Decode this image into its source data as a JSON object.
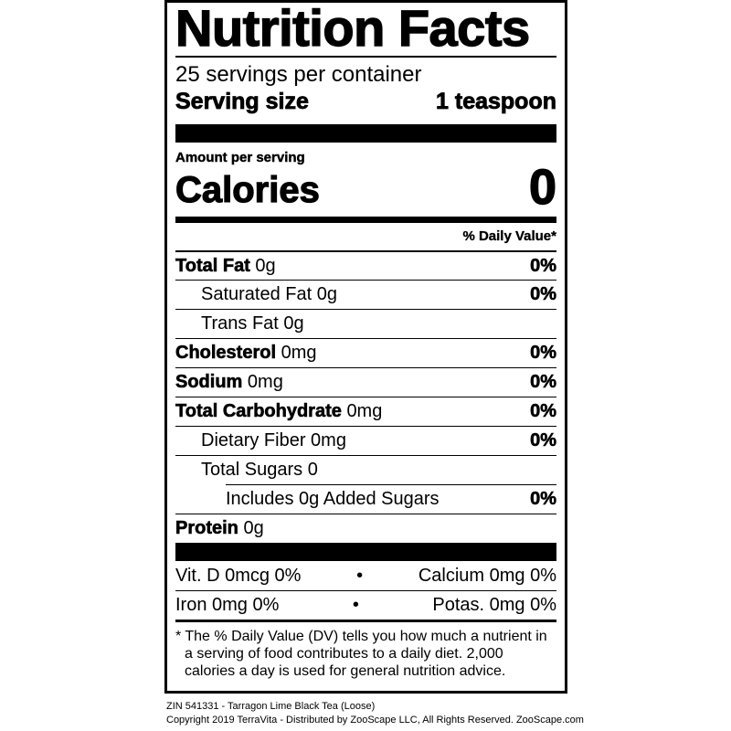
{
  "title": "Nutrition Facts",
  "servings_per_container": "25 servings per container",
  "serving_size_label": "Serving size",
  "serving_size_value": "1 teaspoon",
  "amount_per_serving": "Amount per serving",
  "calories_label": "Calories",
  "calories_value": "0",
  "daily_value_header": "% Daily Value*",
  "nutrients": [
    {
      "name": "Total Fat",
      "amount": "0g",
      "dv": "0%"
    },
    {
      "name": "Saturated Fat 0g",
      "amount": "",
      "dv": "0%"
    },
    {
      "name": "Trans Fat 0g",
      "amount": "",
      "dv": ""
    },
    {
      "name": "Cholesterol",
      "amount": "0mg",
      "dv": "0%"
    },
    {
      "name": "Sodium",
      "amount": "0mg",
      "dv": "0%"
    },
    {
      "name": "Total Carbohydrate",
      "amount": "0mg",
      "dv": "0%"
    },
    {
      "name": "Dietary Fiber 0mg",
      "amount": "",
      "dv": "0%"
    },
    {
      "name": "Total Sugars 0",
      "amount": "",
      "dv": ""
    },
    {
      "name": "Includes 0g Added Sugars",
      "amount": "",
      "dv": "0%"
    },
    {
      "name": "Protein",
      "amount": "0g",
      "dv": ""
    }
  ],
  "vitamins": [
    {
      "left": "Vit. D 0mcg 0%",
      "bullet": "•",
      "right": "Calcium 0mg 0%"
    },
    {
      "left": "Iron 0mg 0%",
      "bullet": "•",
      "right": "Potas. 0mg 0%"
    }
  ],
  "footnote": "* The % Daily Value (DV) tells you how much a nutrient in a serving of food contributes to a daily diet. 2,000 calories a day is used for general nutrition advice.",
  "product_line": "ZIN 541331 - Tarragon Lime Black Tea (Loose)",
  "copyright_line": "Copyright 2019 TerraVita - Distributed by ZooScape LLC, All Rights Reserved. ZooScape.com"
}
